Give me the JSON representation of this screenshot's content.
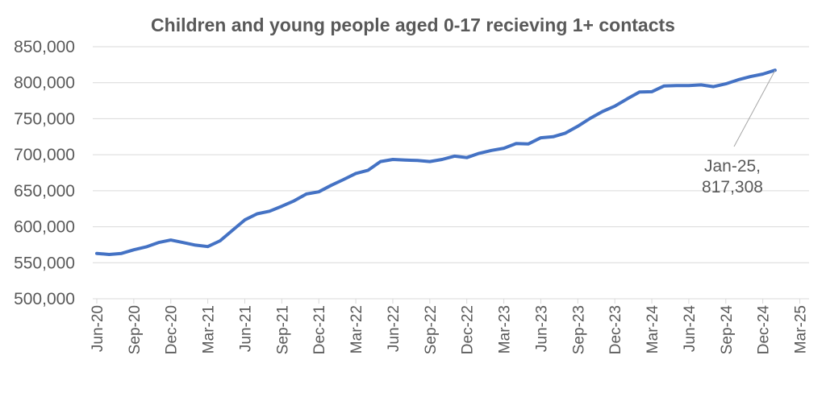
{
  "chart_data": {
    "type": "line",
    "title": "Children and young people aged 0-17 recieving 1+ contacts",
    "xlabel": "",
    "ylabel": "",
    "ylim": [
      500000,
      850000
    ],
    "yticks": [
      "500,000",
      "550,000",
      "600,000",
      "650,000",
      "700,000",
      "750,000",
      "800,000",
      "850,000"
    ],
    "xticks": [
      "Jun-20",
      "Sep-20",
      "Dec-20",
      "Mar-21",
      "Jun-21",
      "Sep-21",
      "Dec-21",
      "Mar-22",
      "Jun-22",
      "Sep-22",
      "Dec-22",
      "Mar-23",
      "Jun-23",
      "Sep-23",
      "Dec-23",
      "Mar-24",
      "Jun-24",
      "Sep-24",
      "Dec-24",
      "Mar-25"
    ],
    "grid": true,
    "legend": "none",
    "color": "#4472C4",
    "series": [
      {
        "x": [
          "Jun-20",
          "Jul-20",
          "Aug-20",
          "Sep-20",
          "Oct-20",
          "Nov-20",
          "Dec-20",
          "Jan-21",
          "Feb-21",
          "Mar-21",
          "Apr-21",
          "May-21",
          "Jun-21",
          "Jul-21",
          "Aug-21",
          "Sep-21",
          "Oct-21",
          "Nov-21",
          "Dec-21",
          "Jan-22",
          "Feb-22",
          "Mar-22",
          "Apr-22",
          "May-22",
          "Jun-22",
          "Jul-22",
          "Aug-22",
          "Sep-22",
          "Oct-22",
          "Nov-22",
          "Dec-22",
          "Jan-23",
          "Feb-23",
          "Mar-23",
          "Apr-23",
          "May-23",
          "Jun-23",
          "Jul-23",
          "Aug-23",
          "Sep-23",
          "Oct-23",
          "Nov-23",
          "Dec-23",
          "Jan-24",
          "Feb-24",
          "Mar-24",
          "Apr-24",
          "May-24",
          "Jun-24",
          "Jul-24",
          "Aug-24",
          "Sep-24",
          "Oct-24",
          "Nov-24",
          "Dec-24",
          "Jan-25"
        ],
        "values": [
          563000,
          561500,
          563000,
          568000,
          572000,
          578000,
          581500,
          578000,
          574500,
          572500,
          580500,
          595000,
          609500,
          618000,
          621500,
          628500,
          636000,
          645500,
          648500,
          657500,
          665500,
          674000,
          678500,
          690500,
          693500,
          692500,
          692000,
          690500,
          693500,
          698000,
          696000,
          702000,
          706000,
          709000,
          715500,
          715000,
          723500,
          725000,
          730000,
          739500,
          750500,
          760000,
          767500,
          777500,
          787000,
          787500,
          795500,
          796000,
          796000,
          797000,
          794500,
          798500,
          804000,
          808500,
          812000,
          817308
        ]
      }
    ],
    "annotation": {
      "point": "Jan-25",
      "line1": "Jan-25,",
      "line2": "817,308"
    }
  }
}
